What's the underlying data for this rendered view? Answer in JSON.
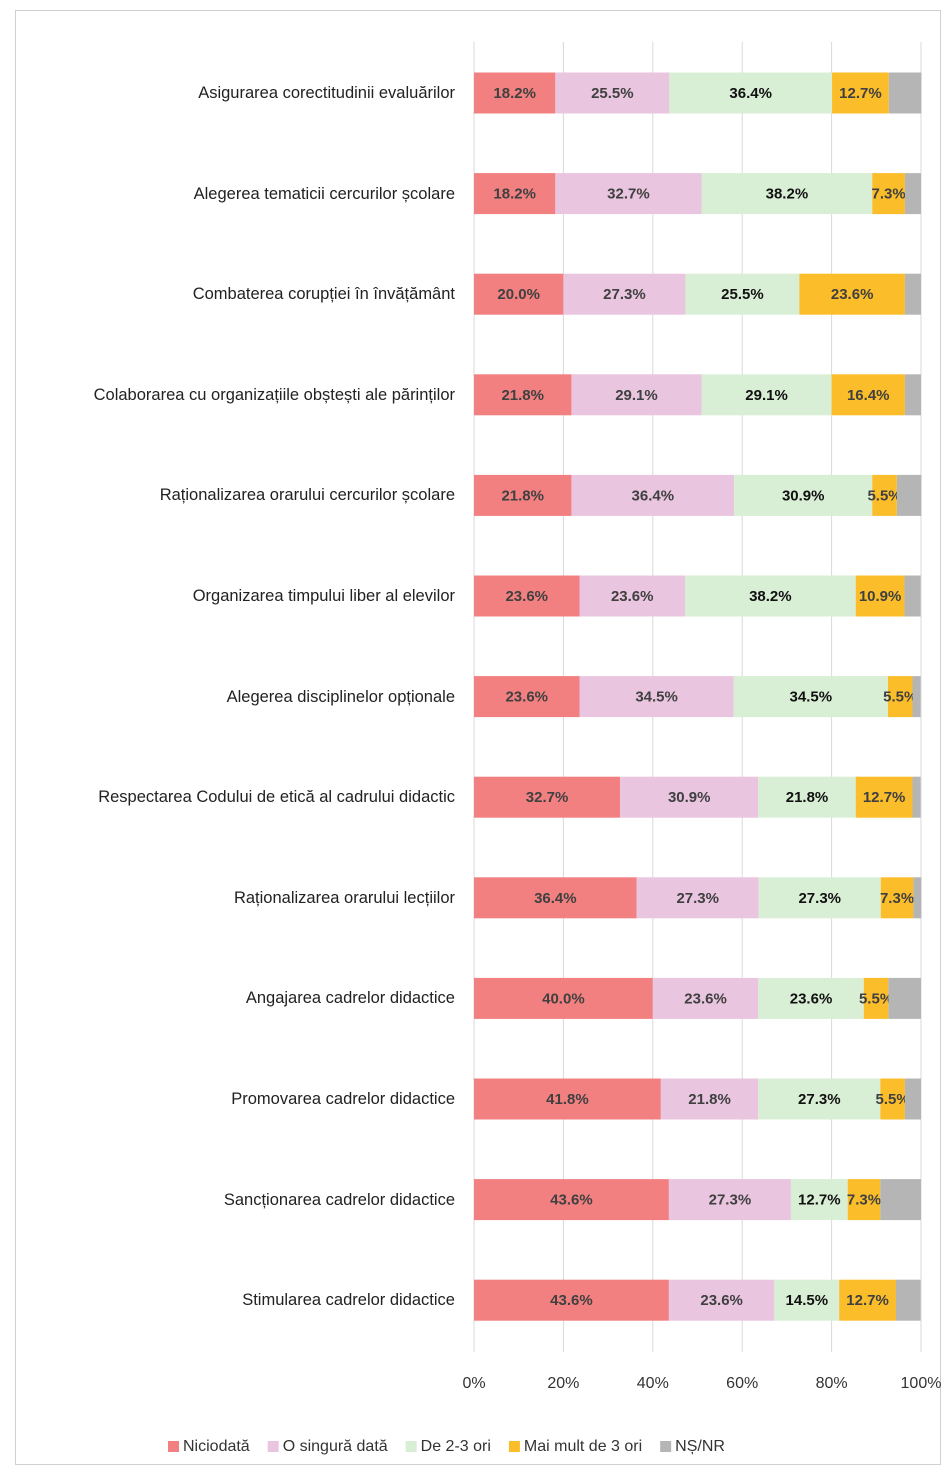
{
  "chart_data": {
    "type": "stacked-barh",
    "categories": [
      "Asigurarea corectitudinii evaluărilor",
      "Alegerea tematicii cercurilor școlare",
      "Combaterea corupției în învățământ",
      "Colaborarea cu organizațiile obștești ale părinților",
      "Raționalizarea orarului cercurilor școlare",
      "Organizarea timpului liber al elevilor",
      "Alegerea disciplinelor opționale",
      "Respectarea Codului de etică al cadrului didactic",
      "Raționalizarea orarului lecțiilor",
      "Angajarea cadrelor didactice",
      "Promovarea cadrelor didactice",
      "Sancționarea cadrelor didactice",
      "Stimularea cadrelor didactice"
    ],
    "series": [
      {
        "name": "Niciodată",
        "color": "#f28080",
        "values": [
          18.2,
          18.2,
          20.0,
          21.8,
          21.8,
          23.6,
          23.6,
          32.7,
          36.4,
          40.0,
          41.8,
          43.6,
          43.6
        ],
        "value_labels": [
          "18.2%",
          "18.2%",
          "20.0%",
          "21.8%",
          "21.8%",
          "23.6%",
          "23.6%",
          "32.7%",
          "36.4%",
          "40.0%",
          "41.8%",
          "43.6%",
          "43.6%"
        ]
      },
      {
        "name": "O singură dată",
        "color": "#e9c5df",
        "values": [
          25.5,
          32.7,
          27.3,
          29.1,
          36.4,
          23.6,
          34.5,
          30.9,
          27.3,
          23.6,
          21.8,
          27.3,
          23.6
        ],
        "value_labels": [
          "25.5%",
          "32.7%",
          "27.3%",
          "29.1%",
          "36.4%",
          "23.6%",
          "34.5%",
          "30.9%",
          "27.3%",
          "23.6%",
          "21.8%",
          "27.3%",
          "23.6%"
        ]
      },
      {
        "name": "De 2-3 ori",
        "color": "#d9efd5",
        "values": [
          36.4,
          38.2,
          25.5,
          29.1,
          30.9,
          38.2,
          34.5,
          21.8,
          27.3,
          23.6,
          27.3,
          12.7,
          14.5
        ],
        "value_labels": [
          "36.4%",
          "38.2%",
          "25.5%",
          "29.1%",
          "30.9%",
          "38.2%",
          "34.5%",
          "21.8%",
          "27.3%",
          "23.6%",
          "27.3%",
          "12.7%",
          "14.5%"
        ]
      },
      {
        "name": "Mai mult de 3 ori",
        "color": "#fbbd2a",
        "values": [
          12.7,
          7.3,
          23.6,
          16.4,
          5.5,
          10.9,
          5.5,
          12.7,
          7.3,
          5.5,
          5.5,
          7.3,
          12.7
        ],
        "value_labels": [
          "12.7%",
          "7.3%",
          "23.6%",
          "16.4%",
          "5.5%",
          "10.9%",
          "5.5%",
          "12.7%",
          "7.3%",
          "5.5%",
          "5.5%",
          "7.3%",
          "12.7%"
        ]
      },
      {
        "name": "NȘ/NR",
        "color": "#b5b5b5",
        "values": [
          7.3,
          3.6,
          3.6,
          3.6,
          5.5,
          3.6,
          1.8,
          1.8,
          1.8,
          7.3,
          3.6,
          9.1,
          5.5
        ]
      }
    ],
    "xlim": [
      0,
      100
    ],
    "xticks": [
      {
        "value": 0,
        "label": "0%"
      },
      {
        "value": 20,
        "label": "20%"
      },
      {
        "value": 40,
        "label": "40%"
      },
      {
        "value": 60,
        "label": "60%"
      },
      {
        "value": 80,
        "label": "80%"
      },
      {
        "value": 100,
        "label": "100%"
      }
    ],
    "grid": true,
    "legend": "bottom"
  }
}
